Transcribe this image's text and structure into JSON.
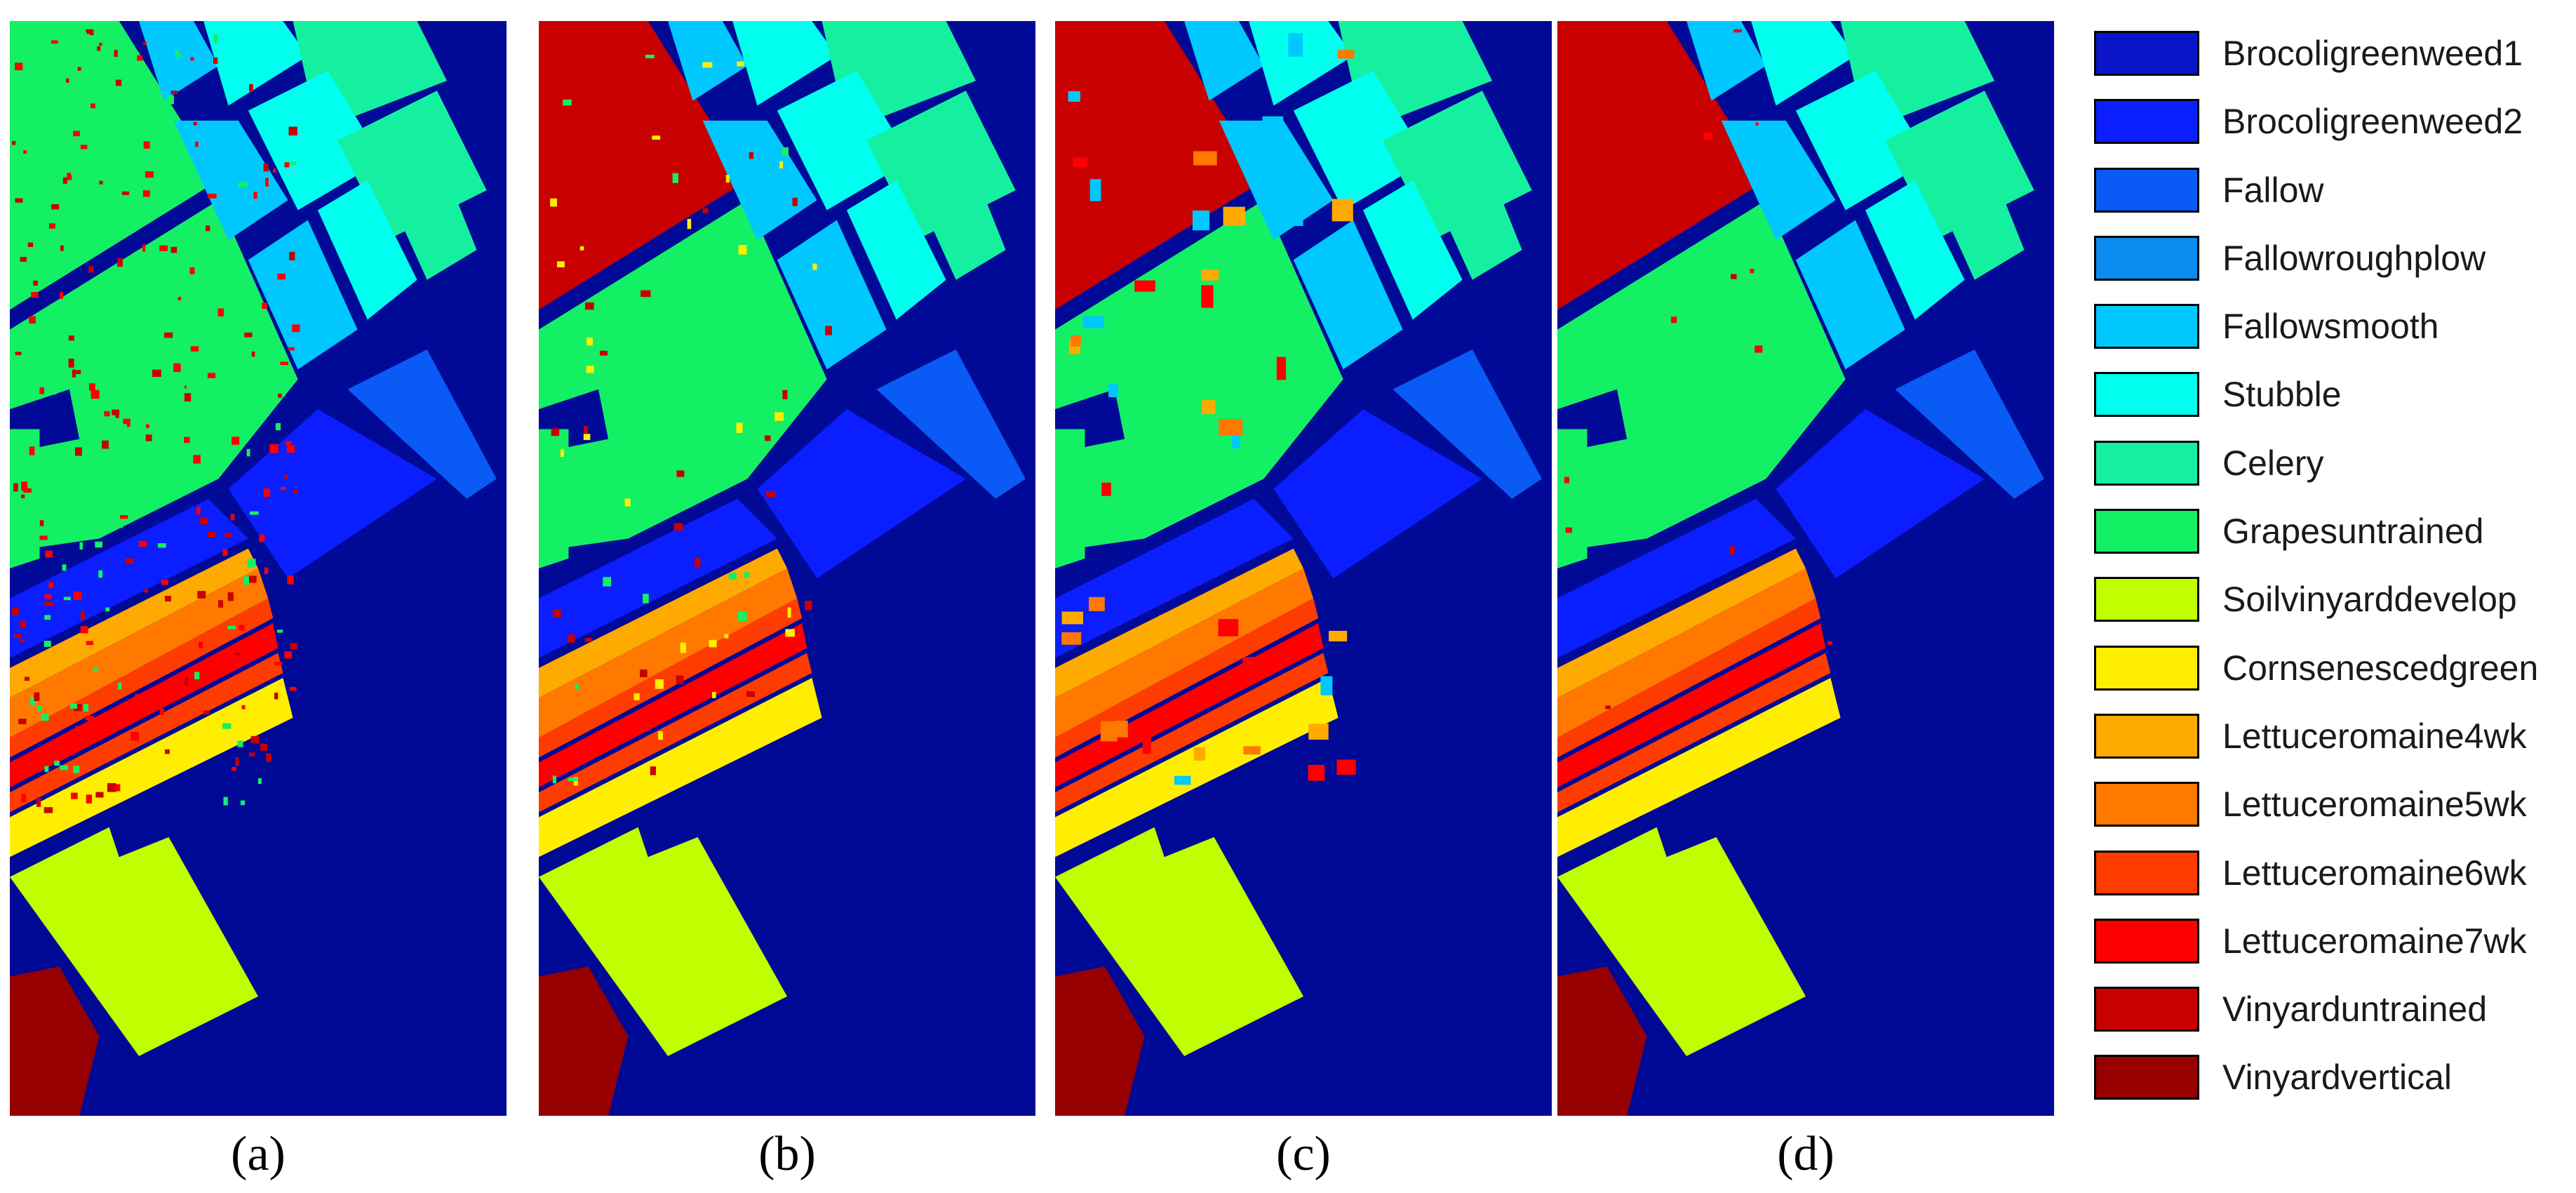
{
  "panels": [
    {
      "label": "(a)",
      "noise": "heavy"
    },
    {
      "label": "(b)",
      "noise": "medium"
    },
    {
      "label": "(c)",
      "noise": "blocky"
    },
    {
      "label": "(d)",
      "noise": "light"
    }
  ],
  "legend": [
    {
      "label": "Brocoligreenweed1",
      "color": "#0a14c8"
    },
    {
      "label": "Brocoligreenweed2",
      "color": "#0a1eff"
    },
    {
      "label": "Fallow",
      "color": "#0a5af5"
    },
    {
      "label": "Fallowroughplow",
      "color": "#0a8cf0"
    },
    {
      "label": "Fallowsmooth",
      "color": "#00c8ff"
    },
    {
      "label": "Stubble",
      "color": "#00ffee"
    },
    {
      "label": "Celery",
      "color": "#14f0a0"
    },
    {
      "label": "Grapesuntrained",
      "color": "#14f064"
    },
    {
      "label": "Soilvinyarddevelop",
      "color": "#c0ff00"
    },
    {
      "label": "Cornsenescedgreen",
      "color": "#ffee00"
    },
    {
      "label": "Lettuceromaine4wk",
      "color": "#ffaa00"
    },
    {
      "label": "Lettuceromaine5wk",
      "color": "#ff7800"
    },
    {
      "label": "Lettuceromaine6wk",
      "color": "#ff3c00"
    },
    {
      "label": "Lettuceromaine7wk",
      "color": "#ff0000"
    },
    {
      "label": "Vinyarduntrained",
      "color": "#c80000"
    },
    {
      "label": "Vinyardvertical",
      "color": "#960000"
    }
  ],
  "background_color": "#000a96"
}
